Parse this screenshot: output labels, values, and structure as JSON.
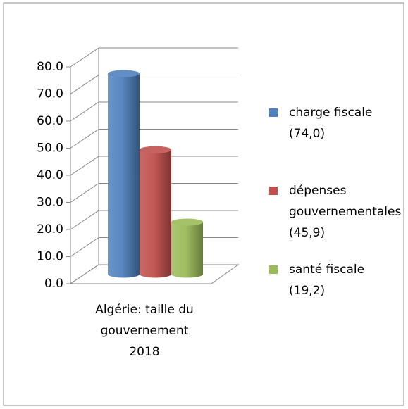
{
  "chart_data": {
    "type": "bar3d",
    "categories": [
      "Algérie: taille du gouvernement 2018"
    ],
    "series": [
      {
        "name": "charge fiscale (74,0)",
        "color": "#4f81bd",
        "values": [
          74.0
        ]
      },
      {
        "name": "dépenses gouvernementales (45,9)",
        "color": "#c0504d",
        "values": [
          45.9
        ]
      },
      {
        "name": "santé fiscale (19,2)",
        "color": "#9bbb59",
        "values": [
          19.2
        ]
      }
    ],
    "ylim": [
      0,
      80
    ],
    "yticks": [
      {
        "value": 0,
        "label": "0.0"
      },
      {
        "value": 10,
        "label": "10.0"
      },
      {
        "value": 20,
        "label": "20.0"
      },
      {
        "value": 30,
        "label": "30.0"
      },
      {
        "value": 40,
        "label": "40.0"
      },
      {
        "value": 50,
        "label": "50.0"
      },
      {
        "value": 60,
        "label": "60.0"
      },
      {
        "value": 70,
        "label": "70.0"
      },
      {
        "value": 80,
        "label": "80.0"
      }
    ],
    "grid": true,
    "legend": "right"
  }
}
